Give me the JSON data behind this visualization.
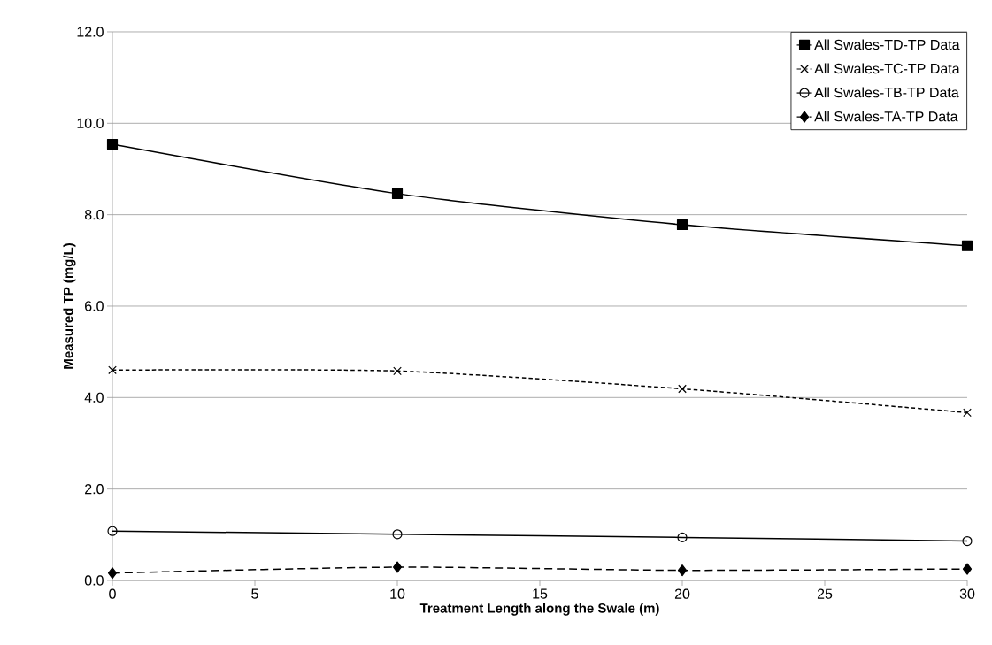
{
  "chart_data": {
    "type": "line",
    "xlabel": "Treatment Length along the  Swale (m)",
    "ylabel": "Measured TP (mg/L)",
    "x": [
      0,
      10,
      20,
      30
    ],
    "series": [
      {
        "name": "All Swales-TD-TP Data",
        "color": "#000000",
        "marker": "square",
        "line_style": "solid",
        "values": [
          9.54,
          8.46,
          7.78,
          7.32
        ]
      },
      {
        "name": "All Swales-TC-TP Data",
        "color": "#000000",
        "marker": "cross",
        "line_style": "dotted",
        "values": [
          4.6,
          4.58,
          4.19,
          3.67
        ]
      },
      {
        "name": "All Swales-TB-TP Data",
        "color": "#000000",
        "marker": "circle",
        "line_style": "solid",
        "values": [
          1.08,
          1.01,
          0.94,
          0.86
        ]
      },
      {
        "name": "All Swales-TA-TP Data",
        "color": "#000000",
        "marker": "diamond",
        "line_style": "dashed",
        "values": [
          0.16,
          0.29,
          0.22,
          0.25
        ]
      }
    ],
    "xlim": [
      0,
      30
    ],
    "xticks": [
      0,
      5,
      10,
      15,
      20,
      25,
      30
    ],
    "ylim": [
      0,
      12
    ],
    "yticks": [
      {
        "value": 0,
        "label": "0.0"
      },
      {
        "value": 2,
        "label": "2.0"
      },
      {
        "value": 4,
        "label": "4.0"
      },
      {
        "value": 6,
        "label": "6.0"
      },
      {
        "value": 8,
        "label": "8.0"
      },
      {
        "value": 10,
        "label": "10.0"
      },
      {
        "value": 12,
        "label": "12.0"
      }
    ],
    "grid": "y",
    "legend": "top right"
  }
}
